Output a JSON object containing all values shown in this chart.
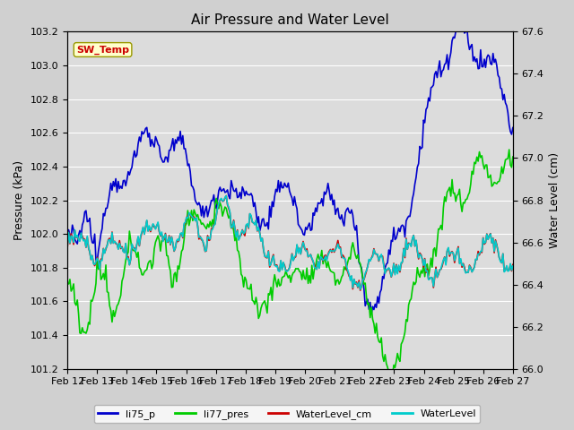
{
  "title": "Air Pressure and Water Level",
  "ylabel_left": "Pressure (kPa)",
  "ylabel_right": "Water Level (cm)",
  "ylim_left": [
    101.2,
    103.2
  ],
  "ylim_right": [
    66.0,
    67.6
  ],
  "annotation_text": "SW_Temp",
  "annotation_color": "#cc0000",
  "annotation_bg": "#ffffcc",
  "annotation_border": "#999900",
  "legend_entries": [
    "li75_p",
    "li77_pres",
    "WaterLevel_cm",
    "WaterLevel"
  ],
  "line_colors": [
    "#0000cc",
    "#00cc00",
    "#cc0000",
    "#00cccc"
  ],
  "xtick_labels": [
    "Feb 12",
    "Feb 13",
    "Feb 14",
    "Feb 15",
    "Feb 16",
    "Feb 17",
    "Feb 18",
    "Feb 19",
    "Feb 20",
    "Feb 21",
    "Feb 22",
    "Feb 23",
    "Feb 24",
    "Feb 25",
    "Feb 26",
    "Feb 27"
  ],
  "bg_outer": "#d0d0d0",
  "bg_plot": "#dcdcdc",
  "grid_color": "#ffffff"
}
